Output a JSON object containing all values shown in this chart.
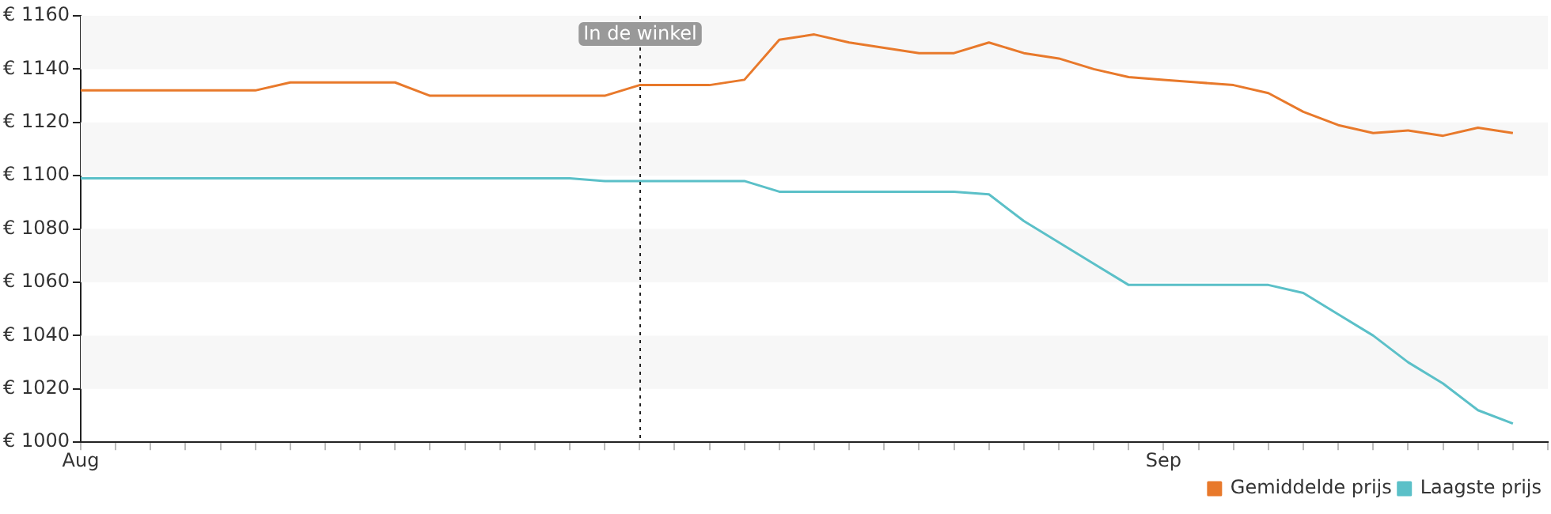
{
  "chart_data": {
    "type": "line",
    "x": [
      "--08-01",
      "--08-02",
      "--08-03",
      "--08-04",
      "--08-05",
      "--08-06",
      "--08-07",
      "--08-08",
      "--08-09",
      "--08-10",
      "--08-11",
      "--08-12",
      "--08-13",
      "--08-14",
      "--08-15",
      "--08-16",
      "--08-17",
      "--08-18",
      "--08-19",
      "--08-20",
      "--08-21",
      "--08-22",
      "--08-23",
      "--08-24",
      "--08-25",
      "--08-26",
      "--08-27",
      "--08-28",
      "--08-29",
      "--08-30",
      "--08-31",
      "--09-01",
      "--09-02",
      "--09-03",
      "--09-04",
      "--09-05",
      "--09-06",
      "--09-07",
      "--09-08",
      "--09-09",
      "--09-10",
      "--09-11"
    ],
    "series": [
      {
        "name": "Gemiddelde prijs",
        "color": "#e8792b",
        "values": [
          1132,
          1132,
          1132,
          1132,
          1132,
          1132,
          1135,
          1135,
          1135,
          1135,
          1130,
          1130,
          1130,
          1130,
          1130,
          1130,
          1134,
          1134,
          1134,
          1136,
          1151,
          1153,
          1150,
          1148,
          1146,
          1146,
          1150,
          1146,
          1144,
          1140,
          1137,
          1136,
          1135,
          1134,
          1131,
          1124,
          1119,
          1116,
          1117,
          1115,
          1118,
          1116
        ]
      },
      {
        "name": "Laagste prijs",
        "color": "#5bc0c8",
        "values": [
          1099,
          1099,
          1099,
          1099,
          1099,
          1099,
          1099,
          1099,
          1099,
          1099,
          1099,
          1099,
          1099,
          1099,
          1099,
          1098,
          1098,
          1098,
          1098,
          1098,
          1094,
          1094,
          1094,
          1094,
          1094,
          1094,
          1093,
          1083,
          1075,
          1067,
          1059,
          1059,
          1059,
          1059,
          1059,
          1056,
          1048,
          1040,
          1030,
          1022,
          1012,
          1007
        ]
      }
    ],
    "xlim": [
      "--08-01",
      "--09-12"
    ],
    "xticks": [
      {
        "value": "--08-01",
        "label": "Aug"
      },
      {
        "value": "--08-02",
        "label": null
      },
      {
        "value": "--08-03",
        "label": null
      },
      {
        "value": "--08-04",
        "label": null
      },
      {
        "value": "--08-05",
        "label": null
      },
      {
        "value": "--08-06",
        "label": null
      },
      {
        "value": "--08-07",
        "label": null
      },
      {
        "value": "--08-08",
        "label": null
      },
      {
        "value": "--08-09",
        "label": null
      },
      {
        "value": "--08-10",
        "label": null
      },
      {
        "value": "--08-11",
        "label": null
      },
      {
        "value": "--08-12",
        "label": null
      },
      {
        "value": "--08-13",
        "label": null
      },
      {
        "value": "--08-14",
        "label": null
      },
      {
        "value": "--08-15",
        "label": null
      },
      {
        "value": "--08-16",
        "label": null
      },
      {
        "value": "--08-17",
        "label": null
      },
      {
        "value": "--08-18",
        "label": null
      },
      {
        "value": "--08-19",
        "label": null
      },
      {
        "value": "--08-20",
        "label": null
      },
      {
        "value": "--08-21",
        "label": null
      },
      {
        "value": "--08-22",
        "label": null
      },
      {
        "value": "--08-23",
        "label": null
      },
      {
        "value": "--08-24",
        "label": null
      },
      {
        "value": "--08-25",
        "label": null
      },
      {
        "value": "--08-26",
        "label": null
      },
      {
        "value": "--08-27",
        "label": null
      },
      {
        "value": "--08-28",
        "label": null
      },
      {
        "value": "--08-29",
        "label": null
      },
      {
        "value": "--08-30",
        "label": null
      },
      {
        "value": "--08-31",
        "label": null
      },
      {
        "value": "--09-01",
        "label": "Sep"
      },
      {
        "value": "--09-02",
        "label": null
      },
      {
        "value": "--09-03",
        "label": null
      },
      {
        "value": "--09-04",
        "label": null
      },
      {
        "value": "--09-05",
        "label": null
      },
      {
        "value": "--09-06",
        "label": null
      },
      {
        "value": "--09-07",
        "label": null
      },
      {
        "value": "--09-08",
        "label": null
      },
      {
        "value": "--09-09",
        "label": null
      },
      {
        "value": "--09-10",
        "label": null
      },
      {
        "value": "--09-11",
        "label": null
      },
      {
        "value": "--09-12",
        "label": null
      }
    ],
    "ylim": [
      1000,
      1160
    ],
    "yticks": [
      {
        "value": 1000,
        "label": "€ 1000"
      },
      {
        "value": 1020,
        "label": "€ 1020"
      },
      {
        "value": 1040,
        "label": "€ 1040"
      },
      {
        "value": 1060,
        "label": "€ 1060"
      },
      {
        "value": 1080,
        "label": "€ 1080"
      },
      {
        "value": 1100,
        "label": "€ 1100"
      },
      {
        "value": 1120,
        "label": "€ 1120"
      },
      {
        "value": 1140,
        "label": "€ 1140"
      },
      {
        "value": 1160,
        "label": "€ 1160"
      }
    ],
    "ref_lines": [
      {
        "axis": "x",
        "value": "--08-17",
        "label": "In de winkel",
        "line_style": "dotted"
      }
    ],
    "legend": "bottom right",
    "marker": "none",
    "line_style": "solid"
  }
}
